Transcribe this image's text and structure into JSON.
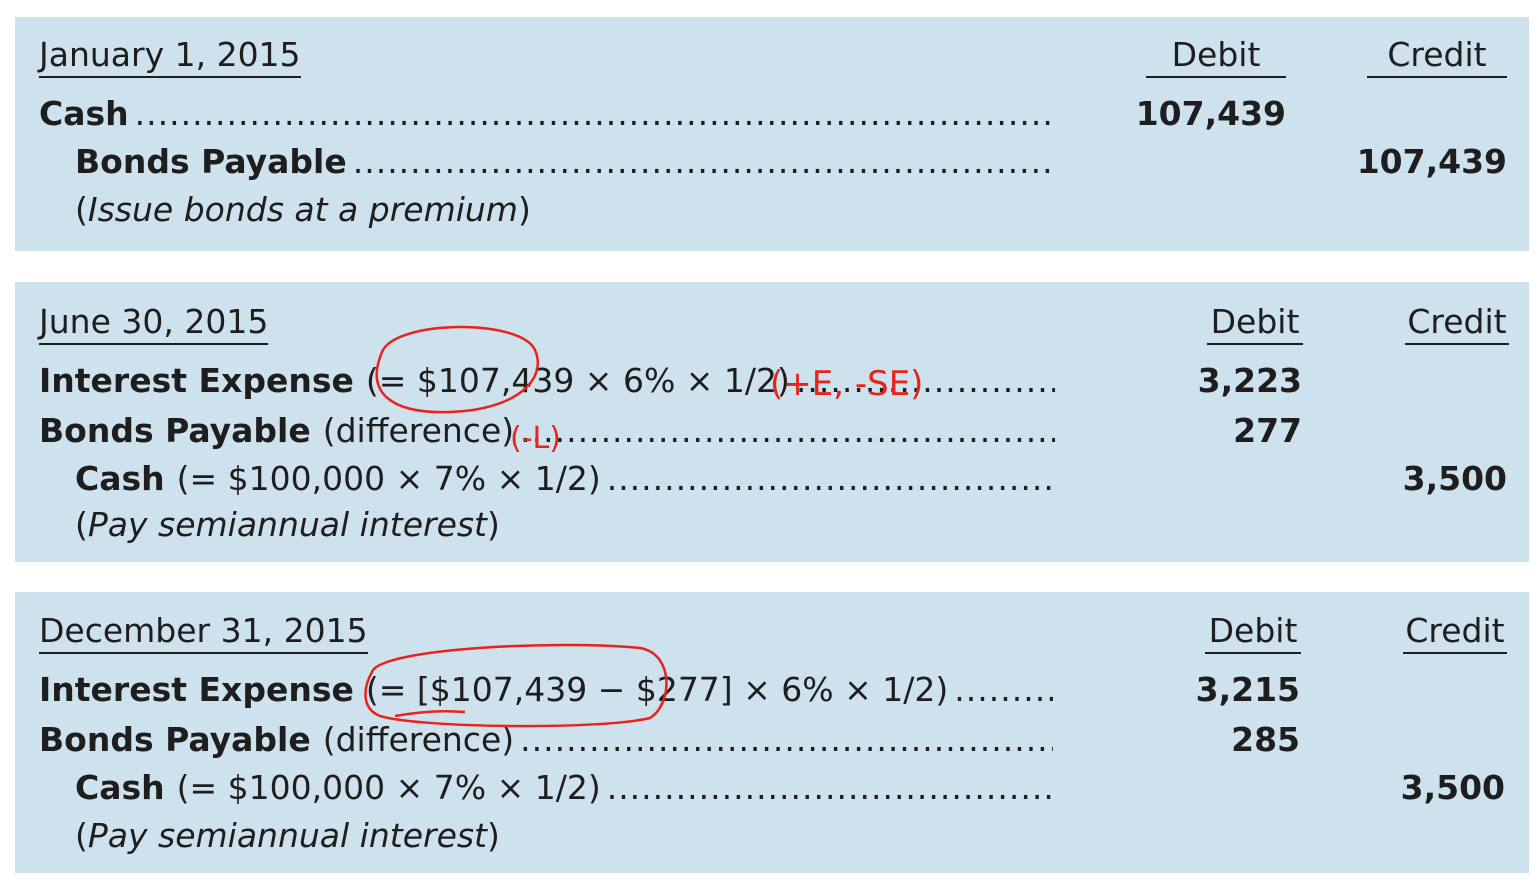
{
  "entry1": {
    "date": "January 1, 2015",
    "debit_header": "Debit",
    "credit_header": "Credit",
    "line1_account": "Cash",
    "line1_debit": "107,439",
    "line2_account": "Bonds Payable",
    "line2_credit": "107,439",
    "memo_open": "(",
    "memo_text": "Issue bonds at a premium",
    "memo_close": ")"
  },
  "entry2": {
    "date": "June 30, 2015",
    "debit_header": "Debit",
    "credit_header": "Credit",
    "line1_account": "Interest Expense",
    "line1_formula": "(= $107,439 × 6% × 1/2)",
    "line1_debit": "3,223",
    "line2_account": "Bonds Payable",
    "line2_note": "(difference)",
    "line2_debit": "277",
    "line3_account": "Cash",
    "line3_formula": "(= $100,000 × 7% × 1/2)",
    "line3_credit": "3,500",
    "memo_open": "(",
    "memo_text": "Pay semiannual interest",
    "memo_close": ")"
  },
  "entry3": {
    "date": "December 31, 2015",
    "debit_header": "Debit",
    "credit_header": "Credit",
    "line1_account": "Interest Expense",
    "line1_formula": "(= [$107,439 − $277] × 6% × 1/2)",
    "line1_debit": "3,215",
    "line2_account": "Bonds Payable",
    "line2_note": "(difference)",
    "line2_debit": "285",
    "line3_account": "Cash",
    "line3_formula": "(= $100,000 × 7% × 1/2)",
    "line3_credit": "3,500",
    "memo_open": "(",
    "memo_text": "Pay semiannual interest",
    "memo_close": ")"
  },
  "annotations": {
    "expense_effect": "(+E, -SE)",
    "liability_effect": "(-L)",
    "ink_color": "#e8231b"
  }
}
